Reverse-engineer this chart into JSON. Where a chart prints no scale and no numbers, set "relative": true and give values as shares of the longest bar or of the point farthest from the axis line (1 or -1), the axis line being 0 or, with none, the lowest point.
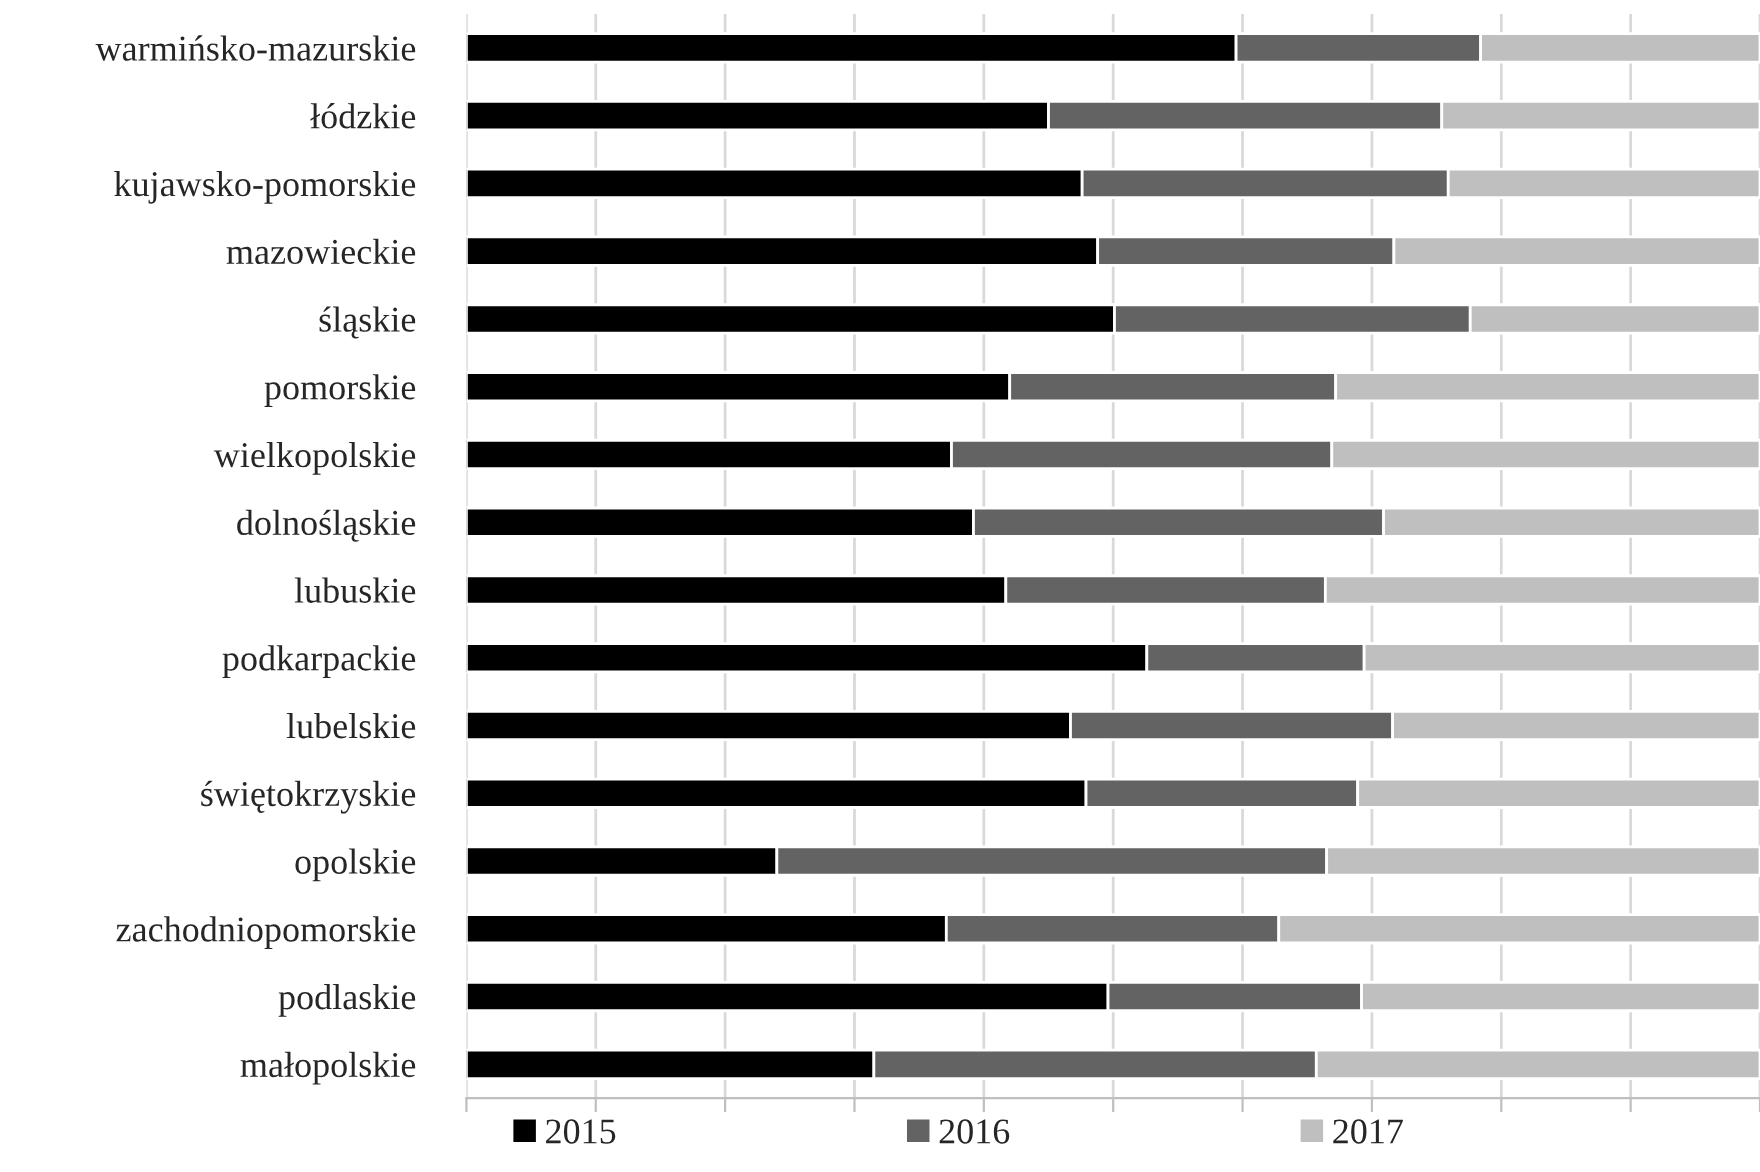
{
  "chart_data": {
    "type": "bar",
    "orientation": "horizontal",
    "stacked": true,
    "relative": true,
    "grid": "x",
    "legend": "bottom",
    "categories": [
      "warmińsko-mazurskie",
      "łódzkie",
      "kujawsko-pomorskie",
      "mazowieckie",
      "śląskie",
      "pomorskie",
      "wielkopolskie",
      "dolnośląskie",
      "lubuskie",
      "podkarpackie",
      "lubelskie",
      "świętokrzyskie",
      "opolskie",
      "zachodniopomorskie",
      "podlaskie",
      "małopolskie"
    ],
    "series": [
      {
        "name": "2015",
        "color": "#000000",
        "values": [
          0.595,
          0.45,
          0.476,
          0.488,
          0.501,
          0.42,
          0.375,
          0.392,
          0.417,
          0.526,
          0.467,
          0.479,
          0.24,
          0.371,
          0.496,
          0.315
        ]
      },
      {
        "name": "2016",
        "color": "#636363",
        "values": [
          0.189,
          0.304,
          0.283,
          0.229,
          0.275,
          0.252,
          0.294,
          0.317,
          0.247,
          0.168,
          0.249,
          0.21,
          0.425,
          0.257,
          0.196,
          0.342
        ]
      },
      {
        "name": "2017",
        "color": "#bfbfbf",
        "values": [
          0.216,
          0.246,
          0.241,
          0.283,
          0.224,
          0.328,
          0.331,
          0.291,
          0.336,
          0.306,
          0.284,
          0.311,
          0.335,
          0.372,
          0.308,
          0.343
        ]
      }
    ]
  }
}
